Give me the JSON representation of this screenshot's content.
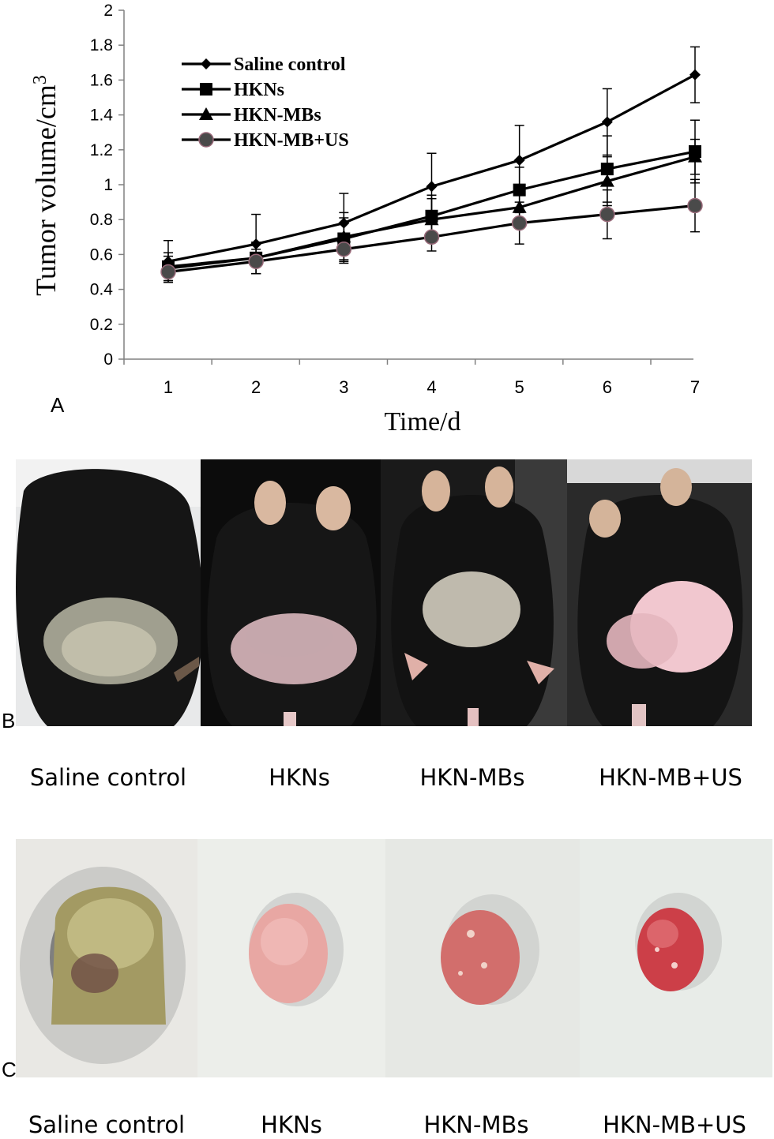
{
  "panel_labels": {
    "a": "A",
    "b": "B",
    "c": "C"
  },
  "chart_data": {
    "type": "line",
    "xlabel": "Time/d",
    "ylabel": "Tumor volume/cm³",
    "x": [
      1,
      2,
      3,
      4,
      5,
      6,
      7
    ],
    "x_ticks": [
      "1",
      "2",
      "3",
      "4",
      "5",
      "6",
      "7"
    ],
    "ylim": [
      0,
      2
    ],
    "y_ticks": [
      "0",
      "0.2",
      "0.4",
      "0.6",
      "0.8",
      "1",
      "1.2",
      "1.4",
      "1.6",
      "1.8",
      "2"
    ],
    "grid": false,
    "legend_position": "top-left",
    "series": [
      {
        "name": "Saline control",
        "marker": "diamond",
        "values": [
          0.56,
          0.66,
          0.78,
          0.99,
          1.14,
          1.36,
          1.63
        ],
        "errors": [
          0.12,
          0.17,
          0.17,
          0.19,
          0.2,
          0.19,
          0.16
        ]
      },
      {
        "name": "HKNs",
        "marker": "square",
        "values": [
          0.53,
          0.58,
          0.69,
          0.82,
          0.97,
          1.09,
          1.19
        ],
        "errors": [
          0.08,
          0.09,
          0.12,
          0.12,
          0.13,
          0.19,
          0.18
        ]
      },
      {
        "name": "HKN-MBs",
        "marker": "triangle",
        "values": [
          0.52,
          0.58,
          0.7,
          0.8,
          0.87,
          1.02,
          1.16
        ],
        "errors": [
          0.07,
          0.09,
          0.14,
          0.12,
          0.12,
          0.14,
          0.1
        ]
      },
      {
        "name": "HKN-MB+US",
        "marker": "circle",
        "values": [
          0.5,
          0.56,
          0.63,
          0.7,
          0.78,
          0.83,
          0.88
        ],
        "errors": [
          0.06,
          0.07,
          0.08,
          0.08,
          0.12,
          0.14,
          0.15
        ]
      }
    ],
    "colors": {
      "line": "#000000",
      "circle_fill": "#4a4a4a",
      "circle_edge": "#9a6a7a"
    }
  },
  "panel_b": {
    "captions": [
      "Saline control",
      "HKNs",
      "HKN-MBs",
      "HKN-MB+US"
    ],
    "photos": [
      "mouse-photo",
      "mouse-photo",
      "mouse-photo",
      "mouse-photo"
    ]
  },
  "panel_c": {
    "captions": [
      "Saline control",
      "HKNs",
      "HKN-MBs",
      "HKN-MB+US"
    ],
    "photos": [
      "tumor-photo",
      "tumor-photo",
      "tumor-photo",
      "tumor-photo"
    ]
  }
}
